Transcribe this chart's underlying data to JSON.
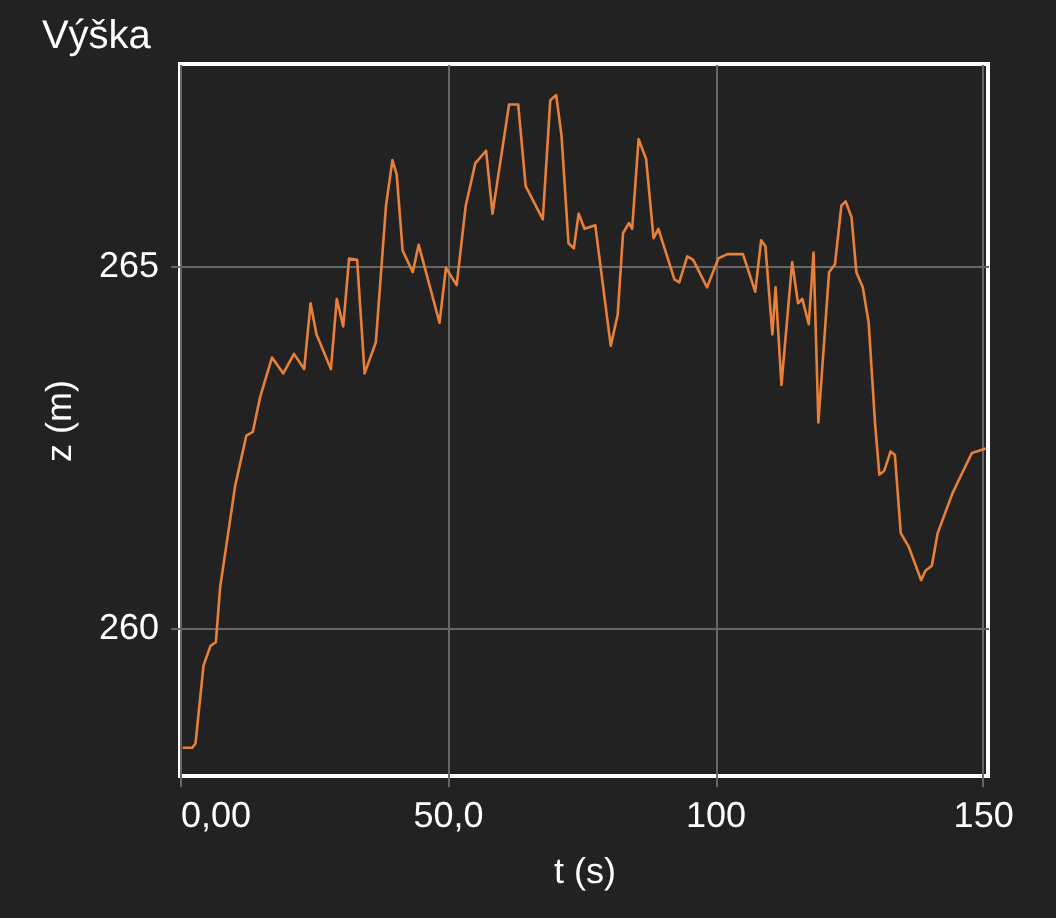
{
  "chart_data": {
    "type": "line",
    "title": "Výška",
    "xlabel": "t (s)",
    "ylabel": "z (m)",
    "xlim": [
      0,
      151
    ],
    "xticks": [
      {
        "value": 0,
        "label": "0,00"
      },
      {
        "value": 50,
        "label": "50,0"
      },
      100,
      150
    ],
    "ylim": [
      257.95,
      267.8
    ],
    "yticks": [
      260,
      265
    ],
    "grid": true,
    "marker": "none",
    "line_style": "solid",
    "series": [
      {
        "color": "#e8803a",
        "x": [
          0.5,
          2.3,
          2.9,
          4.4,
          5.7,
          6.7,
          7.5,
          10.3,
          12.4,
          13.6,
          15.0,
          17.2,
          19.3,
          21.3,
          23.2,
          24.4,
          25.5,
          28.2,
          29.3,
          30.5,
          31.6,
          33.1,
          34.5,
          36.6,
          38.5,
          39.7,
          40.5,
          41.6,
          43.5,
          44.6,
          48.5,
          49.7,
          51.7,
          53.4,
          55.2,
          57.2,
          58.4,
          61.5,
          63.2,
          64.6,
          67.8,
          69.2,
          70.3,
          71.3,
          72.6,
          73.6,
          74.5,
          75.6,
          77.6,
          80.5,
          81.8,
          82.8,
          83.9,
          84.5,
          85.7,
          87.1,
          88.5,
          89.4,
          92.4,
          93.3,
          94.8,
          95.9,
          98.5,
          100.6,
          102.3,
          105.2,
          107.5,
          108.6,
          109.4,
          110.7,
          111.3,
          112.4,
          114.4,
          115.5,
          116.3,
          117.5,
          118.4,
          119.3,
          121.3,
          122.4,
          123.6,
          124.4,
          125.5,
          126.4,
          127.6,
          128.7,
          129.9,
          130.7,
          131.6,
          132.8,
          133.6,
          134.7,
          136.2,
          138.5,
          139.3,
          140.5,
          141.6,
          144.3,
          145.7,
          148.0,
          150.6
        ],
        "values": [
          258.34,
          258.34,
          258.4,
          259.48,
          259.75,
          259.8,
          260.56,
          261.96,
          262.66,
          262.71,
          263.2,
          263.74,
          263.52,
          263.79,
          263.58,
          264.49,
          264.06,
          263.58,
          264.55,
          264.17,
          265.11,
          265.09,
          263.52,
          263.95,
          265.84,
          266.47,
          266.27,
          265.22,
          264.92,
          265.3,
          264.22,
          264.98,
          264.74,
          265.84,
          266.43,
          266.6,
          265.73,
          267.24,
          267.24,
          266.11,
          265.65,
          267.3,
          267.37,
          266.81,
          265.32,
          265.25,
          265.73,
          265.52,
          265.57,
          263.9,
          264.33,
          265.46,
          265.6,
          265.52,
          266.76,
          266.49,
          265.39,
          265.52,
          264.82,
          264.78,
          265.14,
          265.09,
          264.71,
          265.11,
          265.17,
          265.17,
          264.65,
          265.36,
          265.28,
          264.06,
          264.71,
          263.36,
          265.06,
          264.49,
          264.55,
          264.2,
          265.19,
          262.84,
          264.92,
          265.03,
          265.84,
          265.9,
          265.68,
          264.92,
          264.71,
          264.22,
          262.82,
          262.12,
          262.17,
          262.44,
          262.39,
          261.31,
          261.12,
          260.66,
          260.79,
          260.86,
          261.31,
          261.85,
          262.07,
          262.42,
          262.48
        ]
      }
    ]
  }
}
